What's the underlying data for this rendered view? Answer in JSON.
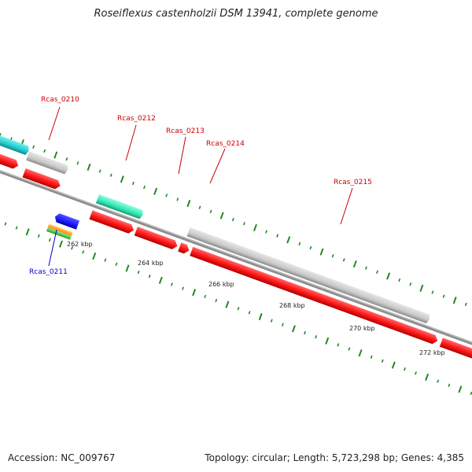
{
  "title": "Roseiflexus castenholzii DSM 13941, complete genome",
  "footer": {
    "accession": "Accession: NC_009767",
    "topology": "Topology: circular; Length: 5,723,298 bp; Genes: 4,385"
  },
  "scale_labels": [
    "262 kbp",
    "264 kbp",
    "266 kbp",
    "268 kbp",
    "270 kbp",
    "272 kbp"
  ],
  "gene_labels": [
    {
      "text": "Rcas_0210",
      "color": "#cc0000"
    },
    {
      "text": "Rcas_0212",
      "color": "#cc0000"
    },
    {
      "text": "Rcas_0213",
      "color": "#cc0000"
    },
    {
      "text": "Rcas_0214",
      "color": "#cc0000"
    },
    {
      "text": "Rcas_0215",
      "color": "#cc0000"
    },
    {
      "text": "Rcas_0211",
      "color": "#0000cc"
    }
  ],
  "colors": {
    "cds_red": "#ff1a1a",
    "gene_gray": "#c8c8c8",
    "teal": "#33e6b3",
    "cyan": "#33cccc",
    "blue": "#1a1aff",
    "orange": "#ff9922",
    "green": "#44bb44",
    "tick_green": "#228822",
    "backbone": "#888888"
  }
}
